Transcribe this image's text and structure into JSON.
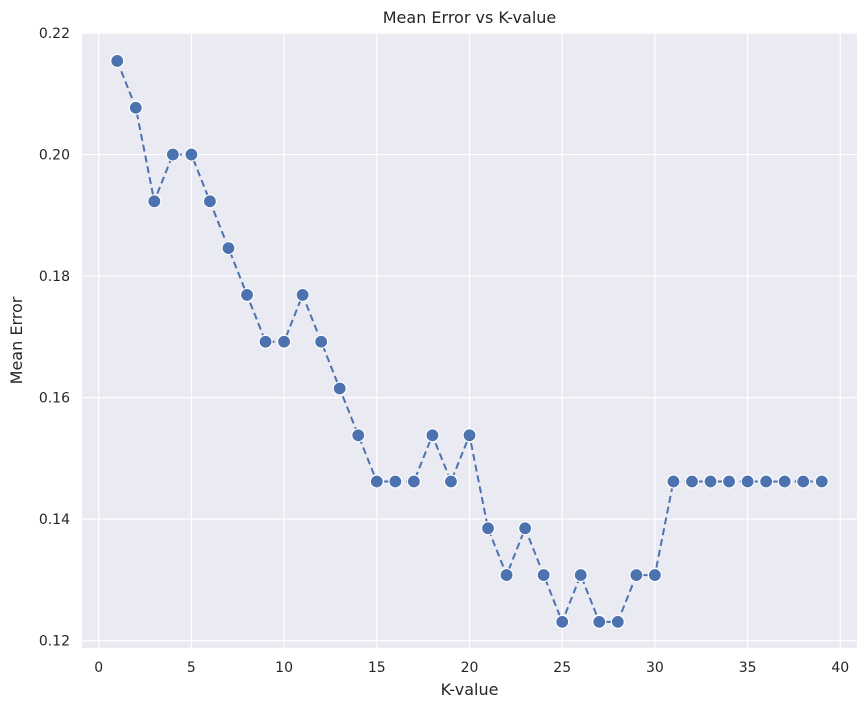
{
  "chart_data": {
    "type": "line",
    "title": "Mean Error vs K-value",
    "xlabel": "K-value",
    "ylabel": "Mean Error",
    "xlim": [
      -0.9,
      40.9
    ],
    "ylim": [
      0.1188,
      0.22
    ],
    "x_ticks": [
      0,
      5,
      10,
      15,
      20,
      25,
      30,
      35,
      40
    ],
    "y_ticks": [
      0.12,
      0.14,
      0.16,
      0.18,
      0.2,
      0.22
    ],
    "y_tick_labels": [
      "0.12",
      "0.14",
      "0.16",
      "0.18",
      "0.20",
      "0.22"
    ],
    "grid": true,
    "line_style": "dashed",
    "marker": "circle",
    "colors": {
      "background": "#eaeaf2",
      "grid": "#ffffff",
      "series": "#4c72b0",
      "text": "#262626"
    },
    "series": [
      {
        "x": [
          1,
          2,
          3,
          4,
          5,
          6,
          7,
          8,
          9,
          10,
          11,
          12,
          13,
          14,
          15,
          16,
          17,
          18,
          19,
          20,
          21,
          22,
          23,
          24,
          25,
          26,
          27,
          28,
          29,
          30,
          31,
          32,
          33,
          34,
          35,
          36,
          37,
          38,
          39
        ],
        "values": [
          0.2154,
          0.2077,
          0.1923,
          0.2,
          0.2,
          0.1923,
          0.1846,
          0.1769,
          0.1692,
          0.1692,
          0.1769,
          0.1692,
          0.1615,
          0.1538,
          0.1462,
          0.1462,
          0.1462,
          0.1538,
          0.1462,
          0.1538,
          0.1385,
          0.1308,
          0.1385,
          0.1308,
          0.1231,
          0.1308,
          0.1231,
          0.1231,
          0.1308,
          0.1308,
          0.1462,
          0.1462,
          0.1462,
          0.1462,
          0.1462,
          0.1462,
          0.1462,
          0.1462,
          0.1462
        ]
      }
    ]
  }
}
